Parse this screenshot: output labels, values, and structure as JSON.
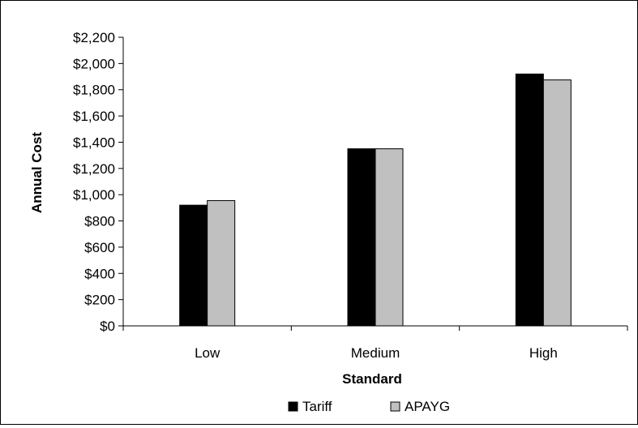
{
  "chart_data": {
    "type": "bar",
    "categories": [
      "Low",
      "Medium",
      "High"
    ],
    "series": [
      {
        "name": "Tariff",
        "values": [
          920,
          1350,
          1920
        ],
        "color": "#000000"
      },
      {
        "name": "APAYG",
        "values": [
          955,
          1350,
          1875
        ],
        "color": "#c0c0c0"
      }
    ],
    "xlabel": "Standard",
    "ylabel": "Annual Cost",
    "ylim": [
      0,
      2200
    ],
    "yticks": [
      0,
      200,
      400,
      600,
      800,
      1000,
      1200,
      1400,
      1600,
      1800,
      2000,
      2200
    ],
    "ytick_labels": [
      "$0",
      "$200",
      "$400",
      "$600",
      "$800",
      "$1,000",
      "$1,200",
      "$1,400",
      "$1,600",
      "$1,800",
      "$2,000",
      "$2,200"
    ],
    "grid": false,
    "legend_position": "bottom"
  }
}
